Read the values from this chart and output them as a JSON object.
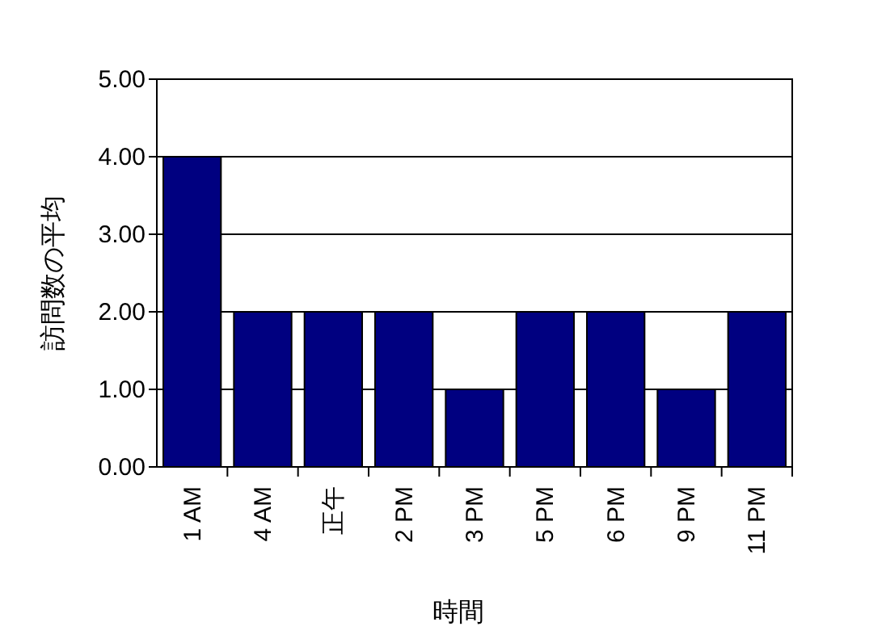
{
  "chart_data": {
    "type": "bar",
    "xlabel": "時間",
    "ylabel": "訪問数の平均",
    "categories": [
      "1 AM",
      "4 AM",
      "正午",
      "2 PM",
      "3 PM",
      "5 PM",
      "6 PM",
      "9 PM",
      "11 PM"
    ],
    "values": [
      4,
      2,
      2,
      2,
      1,
      2,
      2,
      1,
      2
    ],
    "color": "#000080",
    "ylim": [
      0,
      5
    ],
    "yticks": [
      {
        "value": 0,
        "label": "0.00"
      },
      {
        "value": 1,
        "label": "1.00"
      },
      {
        "value": 2,
        "label": "2.00"
      },
      {
        "value": 3,
        "label": "3.00"
      },
      {
        "value": 4,
        "label": "4.00"
      },
      {
        "value": 5,
        "label": "5.00"
      }
    ],
    "grid": "y"
  }
}
